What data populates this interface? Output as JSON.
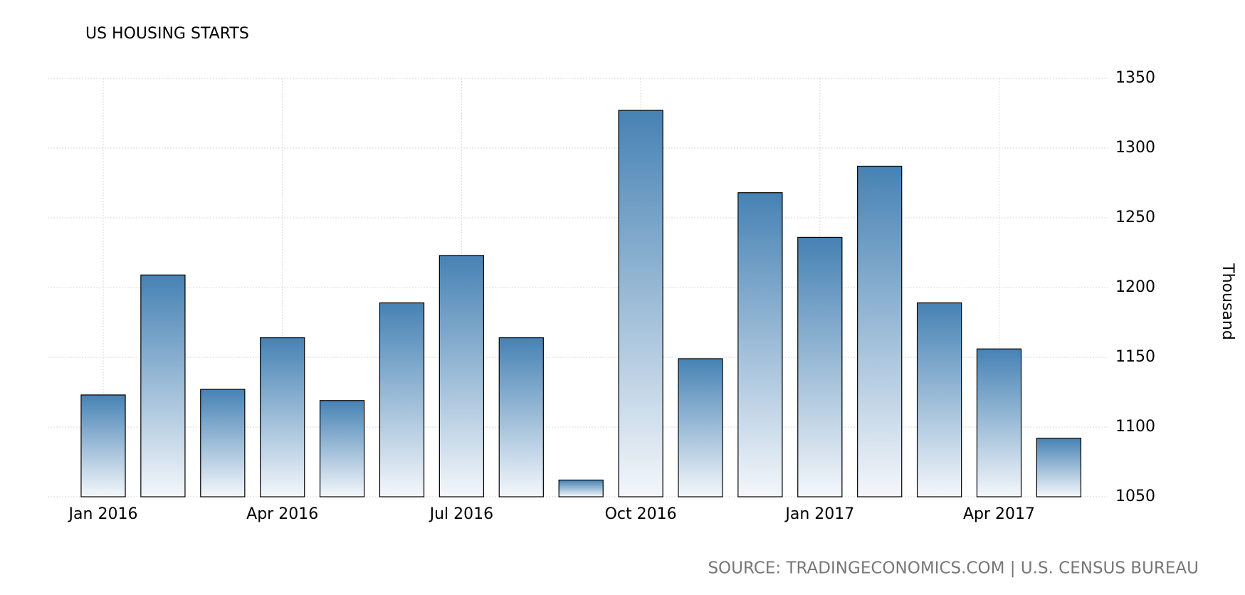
{
  "chart_data": {
    "type": "bar",
    "title": "US HOUSING STARTS",
    "y_label": "Thousand",
    "source": "SOURCE: TRADINGECONOMICS.COM | U.S. CENSUS BUREAU",
    "categories": [
      "Jan 2016",
      null,
      null,
      "Apr 2016",
      null,
      null,
      "Jul 2016",
      null,
      null,
      "Oct 2016",
      null,
      null,
      "Jan 2017",
      null,
      null,
      "Apr 2017",
      null
    ],
    "values": [
      1123,
      1209,
      1127,
      1164,
      1119,
      1189,
      1223,
      1164,
      1062,
      1327,
      1149,
      1268,
      1236,
      1287,
      1189,
      1156,
      1092
    ],
    "color": "#4682b4",
    "ylim": [
      1050,
      1350
    ],
    "yticks": [
      1050,
      1100,
      1150,
      1200,
      1250,
      1300,
      1350
    ],
    "grid": true
  }
}
